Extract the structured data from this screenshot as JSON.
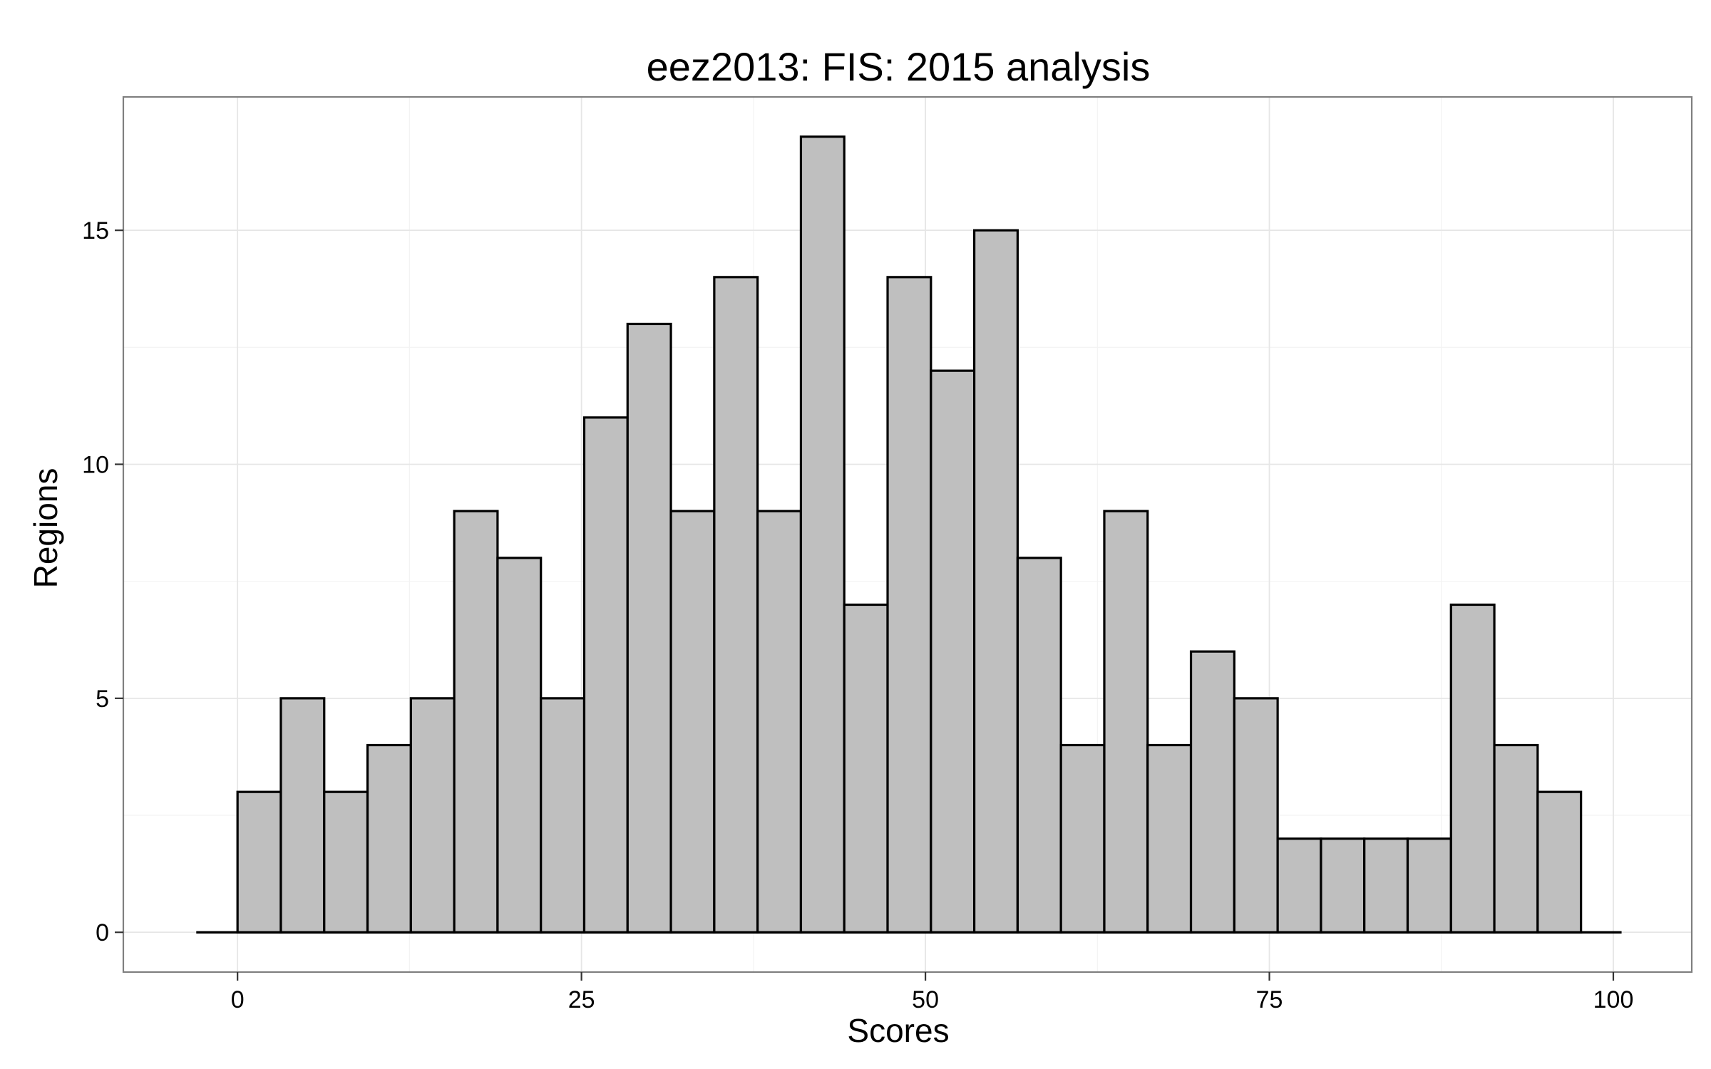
{
  "chart_data": {
    "type": "bar",
    "title": "eez2013: FIS: 2015 analysis",
    "xlabel": "Scores",
    "ylabel": "Regions",
    "xlim": [
      -8.3,
      105.7
    ],
    "ylim": [
      -0.85,
      17.85
    ],
    "xticks": [
      0,
      25,
      50,
      75,
      100
    ],
    "yticks": [
      0,
      5,
      10,
      15
    ],
    "grid": true,
    "bins": {
      "start": 0,
      "width": 3.15,
      "counts": [
        3,
        5,
        3,
        4,
        5,
        9,
        8,
        5,
        11,
        13,
        9,
        14,
        9,
        17,
        7,
        14,
        12,
        15,
        8,
        4,
        9,
        4,
        6,
        5,
        2,
        2,
        2,
        2,
        7,
        4,
        3
      ]
    },
    "baseline_range": [
      -3.0,
      100.6
    ],
    "colors": {
      "bar_fill": "#bfbfbf",
      "bar_stroke": "#000000",
      "panel_border": "#7f7f7f",
      "grid": "#e6e6e6"
    }
  }
}
